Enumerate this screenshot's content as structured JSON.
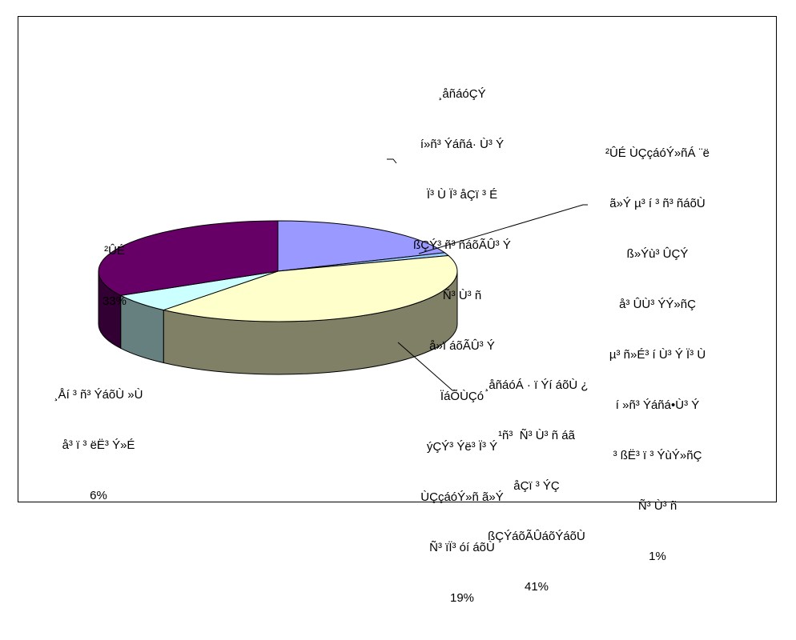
{
  "chart_data": {
    "type": "pie",
    "style": "3d",
    "slices": [
      {
        "id": "s19",
        "value": 19,
        "percent_label": "19%",
        "color": "#9999ff",
        "side_color": "#4c4c80",
        "label_lines": [
          "¸åñáóÇÝ",
          "í»ñ³ Ýáñá· Ù³ Ý",
          "Ï³ Ù Ï³ åÇï ³ É",
          "ßÇÝ³ ñ³ ñáõÃÛ³ Ý",
          "Ñ³ Ù³ ñ",
          "å»ï áõÃÛ³ Ý",
          "ÏáÕÙÇó",
          "ýÇÝ³ Ýë³ Ï³ Ý",
          "ÙÇçáóÝ»ñ ã»Ý",
          "Ñ³ ïÏ³ óí áõÙ"
        ]
      },
      {
        "id": "s1",
        "value": 1,
        "percent_label": "1%",
        "color": "#99ccff",
        "side_color": "#4c6680",
        "label_lines": [
          "²ÛÉ ÙÇçáóÝ»ñÁ ¨ë",
          "ã»Ý µ³ í ³ ñ³ ñáõÙ",
          "ß»Ýù³ ÛÇÝ",
          "å³ ÛÙ³ ÝÝ»ñÇ",
          "µ³ ñ»É³ í Ù³ Ý Ï³ Ù",
          "í »ñ³ Ýáñá•Ù³ Ý",
          "³ ßË³ ï ³ ÝùÝ»ñÇ",
          "Ñ³ Ù³ ñ"
        ]
      },
      {
        "id": "s41",
        "value": 41,
        "percent_label": "41%",
        "color": "#ffffcc",
        "side_color": "#808066",
        "label_lines": [
          "¸åñáóÁ · ï Ýí áõÙ ¿",
          "¹ñ³  Ñ³ Ù³ ñ áã",
          "åÇï ³ ÝÇ",
          "ßÇÝáõÃÛáõÝáõÙ"
        ]
      },
      {
        "id": "s6",
        "value": 6,
        "percent_label": "6%",
        "color": "#ccffff",
        "side_color": "#668080",
        "label_lines": [
          "¸Åí ³ ñ³ ÝáõÙ »Ù",
          "å³ ï ³ ëË³ Ý»É"
        ]
      },
      {
        "id": "s33",
        "value": 33,
        "percent_label": "33%",
        "color": "#660066",
        "side_color": "#330033",
        "label_lines": [
          "²ÛÉ"
        ]
      }
    ]
  }
}
